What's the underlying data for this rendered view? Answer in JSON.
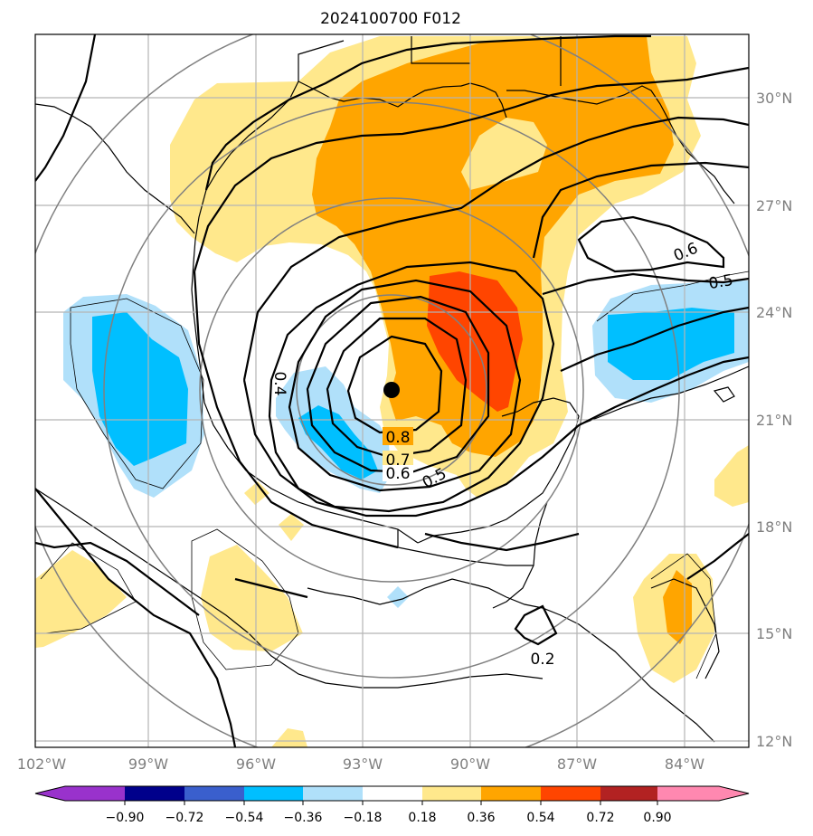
{
  "title": "2024100700 F012",
  "map": {
    "lon_labels": [
      "102°W",
      "99°W",
      "96°W",
      "93°W",
      "90°W",
      "87°W",
      "84°W"
    ],
    "lat_labels": [
      "30°N",
      "27°N",
      "24°N",
      "21°N",
      "18°N",
      "15°N",
      "12°N"
    ],
    "storm_center": {
      "lon": "92°W",
      "lat": "21.8°N"
    },
    "contour_labels": [
      "0.8",
      "0.7",
      "0.6",
      "0.5",
      "0.4",
      "0.6",
      "0.5",
      "0.2"
    ]
  },
  "colorbar": {
    "ticks": [
      "−0.90",
      "−0.72",
      "−0.54",
      "−0.36",
      "−0.18",
      "0.18",
      "0.36",
      "0.54",
      "0.72",
      "0.90"
    ],
    "colors": [
      "#9932cc",
      "#00008b",
      "#3a5fcd",
      "#00bfff",
      "#b0e0fa",
      "#ffffff",
      "#ffe88c",
      "#ffa500",
      "#ff4500",
      "#b22222",
      "#ff88b0"
    ]
  },
  "colors": {
    "pos_light": "#ffe88c",
    "pos_mid": "#ffa500",
    "pos_strong": "#ff4500",
    "neg_light": "#b0e0fa",
    "neg_mid": "#00bfff",
    "grid": "#b5b5b5",
    "range_rings": "#808080"
  }
}
